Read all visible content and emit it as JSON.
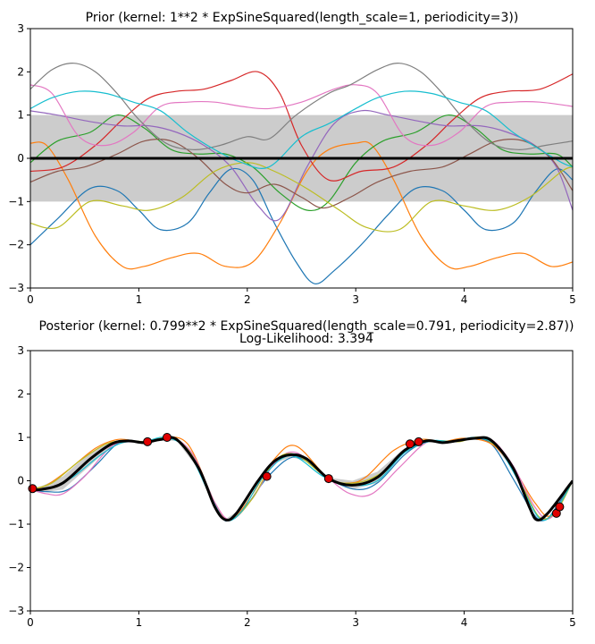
{
  "chart_data": [
    {
      "id": "prior",
      "type": "line",
      "title": "Prior (kernel:  1**2 * ExpSineSquared(length_scale=1, periodicity=3))",
      "subtitle": "",
      "xlabel": "",
      "ylabel": "",
      "xlim": [
        0,
        5
      ],
      "ylim": [
        -3,
        3
      ],
      "x_ticks": [
        0,
        1,
        2,
        3,
        4,
        5
      ],
      "y_ticks": [
        -3,
        -2,
        -1,
        0,
        1,
        2,
        3
      ],
      "x_tick_labels": [
        "0",
        "1",
        "2",
        "3",
        "4",
        "5"
      ],
      "y_tick_labels": [
        "−3",
        "−2",
        "−1",
        "0",
        "1",
        "2",
        "3"
      ],
      "grid": false,
      "band": {
        "x": [
          0,
          5
        ],
        "lower": [
          -1,
          -1
        ],
        "upper": [
          1,
          1
        ]
      },
      "mean": {
        "x": [
          0,
          5
        ],
        "y": [
          0,
          0
        ]
      },
      "series": [
        {
          "name": "sample-1",
          "color": "#1f77b4",
          "x": [
            0,
            0.25,
            0.55,
            0.8,
            1.0,
            1.2,
            1.45,
            1.65,
            1.85,
            2.05,
            2.25,
            2.45,
            2.62,
            2.8,
            3.05,
            3.3,
            3.55,
            3.8,
            4.0,
            4.2,
            4.45,
            4.65,
            4.85,
            5.0
          ],
          "y": [
            -2.0,
            -1.4,
            -0.7,
            -0.75,
            -1.2,
            -1.65,
            -1.5,
            -0.8,
            -0.25,
            -0.5,
            -1.5,
            -2.4,
            -2.9,
            -2.6,
            -2.0,
            -1.3,
            -0.7,
            -0.75,
            -1.2,
            -1.65,
            -1.5,
            -0.8,
            -0.25,
            -0.5
          ]
        },
        {
          "name": "sample-2",
          "color": "#ff7f0e",
          "x": [
            0,
            0.15,
            0.35,
            0.6,
            0.85,
            1.05,
            1.3,
            1.55,
            1.8,
            2.05,
            2.3,
            2.55,
            2.75,
            3.0,
            3.15,
            3.35,
            3.6,
            3.85,
            4.05,
            4.3,
            4.55,
            4.8,
            5.0
          ],
          "y": [
            0.35,
            0.3,
            -0.5,
            -1.8,
            -2.5,
            -2.5,
            -2.3,
            -2.2,
            -2.5,
            -2.4,
            -1.5,
            -0.3,
            0.2,
            0.35,
            0.3,
            -0.5,
            -1.8,
            -2.5,
            -2.5,
            -2.3,
            -2.2,
            -2.5,
            -2.4
          ]
        },
        {
          "name": "sample-3",
          "color": "#2ca02c",
          "x": [
            0,
            0.25,
            0.55,
            0.8,
            1.05,
            1.3,
            1.55,
            1.8,
            2.05,
            2.3,
            2.55,
            2.75,
            3.0,
            3.25,
            3.55,
            3.85,
            4.1,
            4.35,
            4.6,
            4.85,
            5.0
          ],
          "y": [
            -0.1,
            0.4,
            0.6,
            1.0,
            0.7,
            0.2,
            0.1,
            0.1,
            -0.2,
            -0.8,
            -1.2,
            -1.0,
            -0.1,
            0.4,
            0.6,
            1.0,
            0.7,
            0.2,
            0.1,
            0.1,
            -0.2
          ]
        },
        {
          "name": "sample-4",
          "color": "#d62728",
          "x": [
            0,
            0.3,
            0.6,
            0.85,
            1.1,
            1.35,
            1.6,
            1.85,
            2.1,
            2.3,
            2.5,
            2.75,
            3.05,
            3.35,
            3.65,
            3.9,
            4.15,
            4.4,
            4.7,
            5.0
          ],
          "y": [
            -0.3,
            -0.2,
            0.3,
            0.9,
            1.4,
            1.55,
            1.6,
            1.8,
            2.0,
            1.5,
            0.3,
            -0.5,
            -0.3,
            -0.2,
            0.3,
            0.9,
            1.4,
            1.55,
            1.6,
            1.95
          ]
        },
        {
          "name": "sample-5",
          "color": "#9467bd",
          "x": [
            0,
            0.25,
            0.55,
            0.85,
            1.1,
            1.35,
            1.6,
            1.85,
            2.1,
            2.3,
            2.55,
            2.8,
            3.05,
            3.3,
            3.6,
            3.85,
            4.15,
            4.4,
            4.65,
            4.85,
            5.0
          ],
          "y": [
            1.1,
            1.0,
            0.85,
            0.75,
            0.75,
            0.6,
            0.3,
            -0.2,
            -1.1,
            -1.4,
            -0.2,
            0.8,
            1.1,
            1.0,
            0.85,
            0.75,
            0.75,
            0.6,
            0.3,
            -0.2,
            -1.2
          ]
        },
        {
          "name": "sample-6",
          "color": "#8c564b",
          "x": [
            0,
            0.25,
            0.5,
            0.8,
            1.05,
            1.3,
            1.55,
            1.8,
            2.0,
            2.25,
            2.5,
            2.7,
            2.95,
            3.2,
            3.5,
            3.8,
            4.05,
            4.3,
            4.55,
            4.8,
            5.0
          ],
          "y": [
            -0.55,
            -0.3,
            -0.2,
            0.1,
            0.4,
            0.4,
            0.0,
            -0.6,
            -0.8,
            -0.6,
            -0.9,
            -1.15,
            -0.9,
            -0.55,
            -0.3,
            -0.2,
            0.1,
            0.4,
            0.4,
            0.0,
            -0.75
          ]
        },
        {
          "name": "sample-7",
          "color": "#e377c2",
          "x": [
            0,
            0.2,
            0.45,
            0.7,
            0.95,
            1.2,
            1.45,
            1.7,
            1.95,
            2.2,
            2.5,
            2.8,
            3.0,
            3.2,
            3.45,
            3.7,
            3.95,
            4.2,
            4.45,
            4.7,
            5.0
          ],
          "y": [
            1.7,
            1.5,
            0.5,
            0.3,
            0.6,
            1.2,
            1.3,
            1.3,
            1.2,
            1.15,
            1.3,
            1.6,
            1.7,
            1.5,
            0.5,
            0.3,
            0.6,
            1.2,
            1.3,
            1.3,
            1.2
          ]
        },
        {
          "name": "sample-8",
          "color": "#7f7f7f",
          "x": [
            0,
            0.2,
            0.4,
            0.6,
            0.8,
            1.0,
            1.25,
            1.5,
            1.75,
            2.0,
            2.2,
            2.45,
            2.75,
            2.95,
            3.2,
            3.4,
            3.6,
            3.8,
            4.0,
            4.25,
            4.5,
            4.75,
            5.0
          ],
          "y": [
            1.6,
            2.05,
            2.2,
            2.0,
            1.5,
            0.9,
            0.35,
            0.2,
            0.3,
            0.5,
            0.45,
            1.0,
            1.5,
            1.7,
            2.05,
            2.2,
            2.0,
            1.5,
            0.9,
            0.35,
            0.2,
            0.3,
            0.4
          ]
        },
        {
          "name": "sample-9",
          "color": "#bcbd22",
          "x": [
            0,
            0.25,
            0.55,
            0.85,
            1.1,
            1.4,
            1.7,
            2.0,
            2.25,
            2.55,
            2.85,
            3.1,
            3.4,
            3.7,
            4.0,
            4.3,
            4.6,
            4.9,
            5.0
          ],
          "y": [
            -1.5,
            -1.6,
            -1.0,
            -1.1,
            -1.2,
            -0.9,
            -0.3,
            -0.1,
            -0.3,
            -0.7,
            -1.2,
            -1.6,
            -1.65,
            -1.0,
            -1.1,
            -1.2,
            -0.9,
            -0.3,
            -0.2
          ]
        },
        {
          "name": "sample-10",
          "color": "#17becf",
          "x": [
            0,
            0.2,
            0.45,
            0.7,
            0.95,
            1.2,
            1.45,
            1.7,
            1.95,
            2.2,
            2.5,
            2.75,
            3.0,
            3.2,
            3.45,
            3.7,
            3.95,
            4.2,
            4.45,
            4.7,
            4.9,
            5.0
          ],
          "y": [
            1.15,
            1.4,
            1.55,
            1.5,
            1.3,
            1.1,
            0.6,
            0.2,
            -0.1,
            -0.2,
            0.5,
            0.8,
            1.15,
            1.4,
            1.55,
            1.5,
            1.3,
            1.1,
            0.6,
            0.2,
            -0.1,
            -0.2
          ]
        }
      ]
    },
    {
      "id": "posterior",
      "type": "line",
      "title": "Posterior (kernel: 0.799**2 * ExpSineSquared(length_scale=0.791, periodicity=2.87))",
      "subtitle": "Log-Likelihood: 3.394",
      "xlabel": "",
      "ylabel": "",
      "xlim": [
        0,
        5
      ],
      "ylim": [
        -3,
        3
      ],
      "x_ticks": [
        0,
        1,
        2,
        3,
        4,
        5
      ],
      "y_ticks": [
        -3,
        -2,
        -1,
        0,
        1,
        2,
        3
      ],
      "x_tick_labels": [
        "0",
        "1",
        "2",
        "3",
        "4",
        "5"
      ],
      "y_tick_labels": [
        "−3",
        "−2",
        "−1",
        "0",
        "1",
        "2",
        "3"
      ],
      "grid": false,
      "mean": {
        "x": [
          0,
          0.1,
          0.3,
          0.55,
          0.75,
          0.9,
          1.05,
          1.2,
          1.35,
          1.55,
          1.7,
          1.8,
          1.9,
          2.1,
          2.25,
          2.4,
          2.55,
          2.75,
          2.97,
          3.2,
          3.45,
          3.65,
          3.8,
          3.95,
          4.1,
          4.25,
          4.45,
          4.6,
          4.67,
          4.77,
          4.97,
          5.0
        ],
        "y": [
          -0.2,
          -0.2,
          -0.05,
          0.5,
          0.85,
          0.92,
          0.88,
          0.95,
          0.95,
          0.3,
          -0.6,
          -0.9,
          -0.75,
          0.0,
          0.45,
          0.6,
          0.5,
          0.05,
          -0.1,
          0.08,
          0.7,
          0.92,
          0.88,
          0.93,
          0.98,
          0.93,
          0.3,
          -0.6,
          -0.9,
          -0.75,
          -0.1,
          0.0
        ]
      },
      "band": {
        "x": [
          0,
          0.1,
          0.3,
          0.55,
          0.75,
          0.9,
          1.05,
          1.2,
          1.35,
          1.55,
          1.7,
          1.8,
          1.9,
          2.1,
          2.25,
          2.4,
          2.55,
          2.75,
          2.97,
          3.2,
          3.45,
          3.65,
          3.8,
          3.95,
          4.1,
          4.25,
          4.45,
          4.6,
          4.67,
          4.77,
          4.97,
          5.0
        ],
        "lower": [
          -0.22,
          -0.27,
          -0.2,
          0.35,
          0.8,
          0.89,
          0.86,
          0.93,
          0.92,
          0.26,
          -0.63,
          -0.92,
          -0.78,
          -0.02,
          0.4,
          0.55,
          0.45,
          0.03,
          -0.2,
          -0.05,
          0.65,
          0.89,
          0.86,
          0.9,
          0.95,
          0.9,
          0.26,
          -0.63,
          -0.92,
          -0.78,
          -0.13,
          -0.03
        ],
        "upper": [
          -0.18,
          -0.13,
          0.1,
          0.65,
          0.9,
          0.95,
          0.9,
          0.97,
          0.98,
          0.34,
          -0.57,
          -0.88,
          -0.72,
          0.02,
          0.5,
          0.65,
          0.55,
          0.07,
          0.0,
          0.21,
          0.75,
          0.95,
          0.9,
          0.96,
          1.01,
          0.96,
          0.34,
          -0.57,
          -0.88,
          -0.72,
          -0.07,
          0.03
        ]
      },
      "points": {
        "x": [
          0.02,
          1.08,
          1.26,
          2.18,
          2.75,
          3.5,
          3.58,
          4.85,
          4.88
        ],
        "y": [
          -0.18,
          0.9,
          1.0,
          0.1,
          0.05,
          0.85,
          0.9,
          -0.75,
          -0.6
        ]
      },
      "series": [
        {
          "name": "sample-1",
          "color": "#1f77b4",
          "x": [
            0,
            0.15,
            0.35,
            0.6,
            0.8,
            0.95,
            1.05,
            1.2,
            1.4,
            1.6,
            1.75,
            1.85,
            2.0,
            2.2,
            2.45,
            2.75,
            3.0,
            3.2,
            3.45,
            3.65,
            3.85,
            4.05,
            4.25,
            4.45,
            4.65,
            4.75,
            4.85,
            5.0
          ],
          "y": [
            -0.2,
            -0.25,
            -0.2,
            0.35,
            0.85,
            0.9,
            0.88,
            0.98,
            0.85,
            0.05,
            -0.8,
            -0.9,
            -0.55,
            0.12,
            0.55,
            0.05,
            -0.2,
            -0.05,
            0.6,
            0.9,
            0.88,
            0.98,
            0.85,
            0.05,
            -0.8,
            -0.9,
            -0.6,
            0.0
          ]
        },
        {
          "name": "sample-2",
          "color": "#ff7f0e",
          "x": [
            0,
            0.15,
            0.35,
            0.6,
            0.8,
            0.95,
            1.05,
            1.2,
            1.45,
            1.7,
            1.85,
            2.05,
            2.25,
            2.45,
            2.75,
            2.95,
            3.1,
            3.35,
            3.6,
            3.8,
            4.0,
            4.25,
            4.45,
            4.65,
            4.8,
            5.0
          ],
          "y": [
            -0.2,
            -0.1,
            0.25,
            0.75,
            0.95,
            0.92,
            0.88,
            0.98,
            0.85,
            -0.5,
            -0.9,
            -0.3,
            0.5,
            0.8,
            0.05,
            -0.05,
            0.1,
            0.7,
            0.95,
            0.9,
            0.98,
            0.85,
            0.3,
            -0.5,
            -0.8,
            0.0
          ]
        },
        {
          "name": "sample-3",
          "color": "#e377c2",
          "x": [
            0,
            0.15,
            0.3,
            0.5,
            0.75,
            0.95,
            1.1,
            1.3,
            1.5,
            1.7,
            1.85,
            2.05,
            2.25,
            2.45,
            2.75,
            2.95,
            3.15,
            3.4,
            3.65,
            3.85,
            4.05,
            4.25,
            4.45,
            4.65,
            4.8,
            5.0
          ],
          "y": [
            -0.2,
            -0.3,
            -0.3,
            0.1,
            0.8,
            0.9,
            0.9,
            1.0,
            0.6,
            -0.5,
            -0.9,
            -0.4,
            0.4,
            0.65,
            0.05,
            -0.3,
            -0.3,
            0.3,
            0.88,
            0.9,
            0.98,
            0.95,
            0.35,
            -0.6,
            -0.85,
            0.0
          ]
        },
        {
          "name": "sample-4",
          "color": "#bcbd22",
          "x": [
            0,
            0.2,
            0.45,
            0.7,
            0.9,
            1.1,
            1.3,
            1.5,
            1.7,
            1.85,
            2.05,
            2.25,
            2.45,
            2.75,
            3.0,
            3.25,
            3.5,
            3.75,
            3.95,
            4.15,
            4.35,
            4.55,
            4.7,
            4.85,
            5.0
          ],
          "y": [
            -0.2,
            -0.05,
            0.45,
            0.85,
            0.92,
            0.9,
            1.0,
            0.55,
            -0.6,
            -0.9,
            -0.4,
            0.45,
            0.6,
            0.05,
            -0.05,
            0.2,
            0.8,
            0.92,
            0.9,
            1.0,
            0.65,
            -0.2,
            -0.85,
            -0.7,
            0.0
          ]
        },
        {
          "name": "sample-5",
          "color": "#17becf",
          "x": [
            0,
            0.2,
            0.4,
            0.65,
            0.85,
            1.05,
            1.25,
            1.45,
            1.65,
            1.8,
            1.95,
            2.15,
            2.4,
            2.7,
            2.95,
            3.2,
            3.45,
            3.7,
            3.9,
            4.1,
            4.3,
            4.5,
            4.7,
            4.85,
            5.0
          ],
          "y": [
            -0.2,
            -0.15,
            0.1,
            0.6,
            0.88,
            0.9,
            1.0,
            0.7,
            -0.3,
            -0.9,
            -0.7,
            0.1,
            0.58,
            0.1,
            -0.1,
            0.0,
            0.65,
            0.92,
            0.9,
            1.0,
            0.8,
            0.0,
            -0.88,
            -0.65,
            0.0
          ]
        }
      ]
    }
  ]
}
